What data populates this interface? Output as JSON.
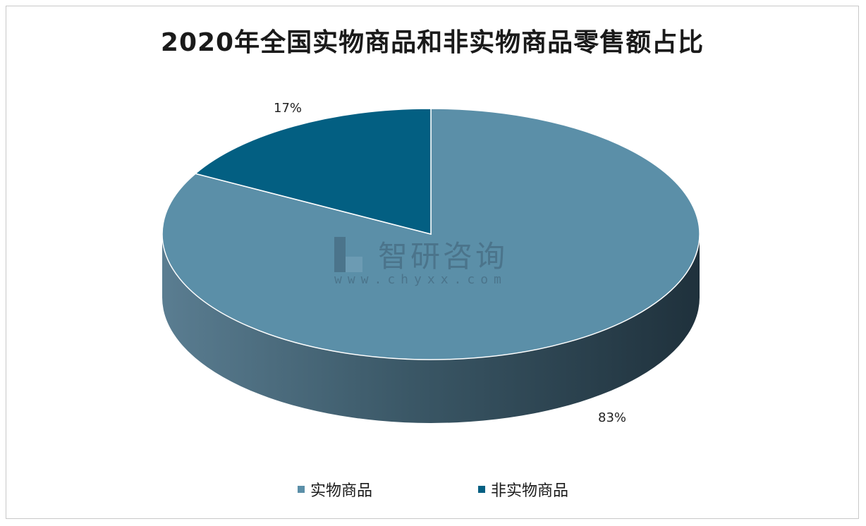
{
  "chart_data": {
    "type": "pie",
    "title": "2020年全国实物商品和非实物商品零售额占比",
    "categories": [
      "实物商品",
      "非实物商品"
    ],
    "values": [
      83,
      17
    ],
    "value_labels": [
      "83%",
      "17%"
    ],
    "colors": [
      "#5b8fa8",
      "#035f82"
    ],
    "legend_position": "bottom",
    "style": "3d"
  },
  "watermark": {
    "name": "智研咨询",
    "url": "www.chyxx.com"
  }
}
